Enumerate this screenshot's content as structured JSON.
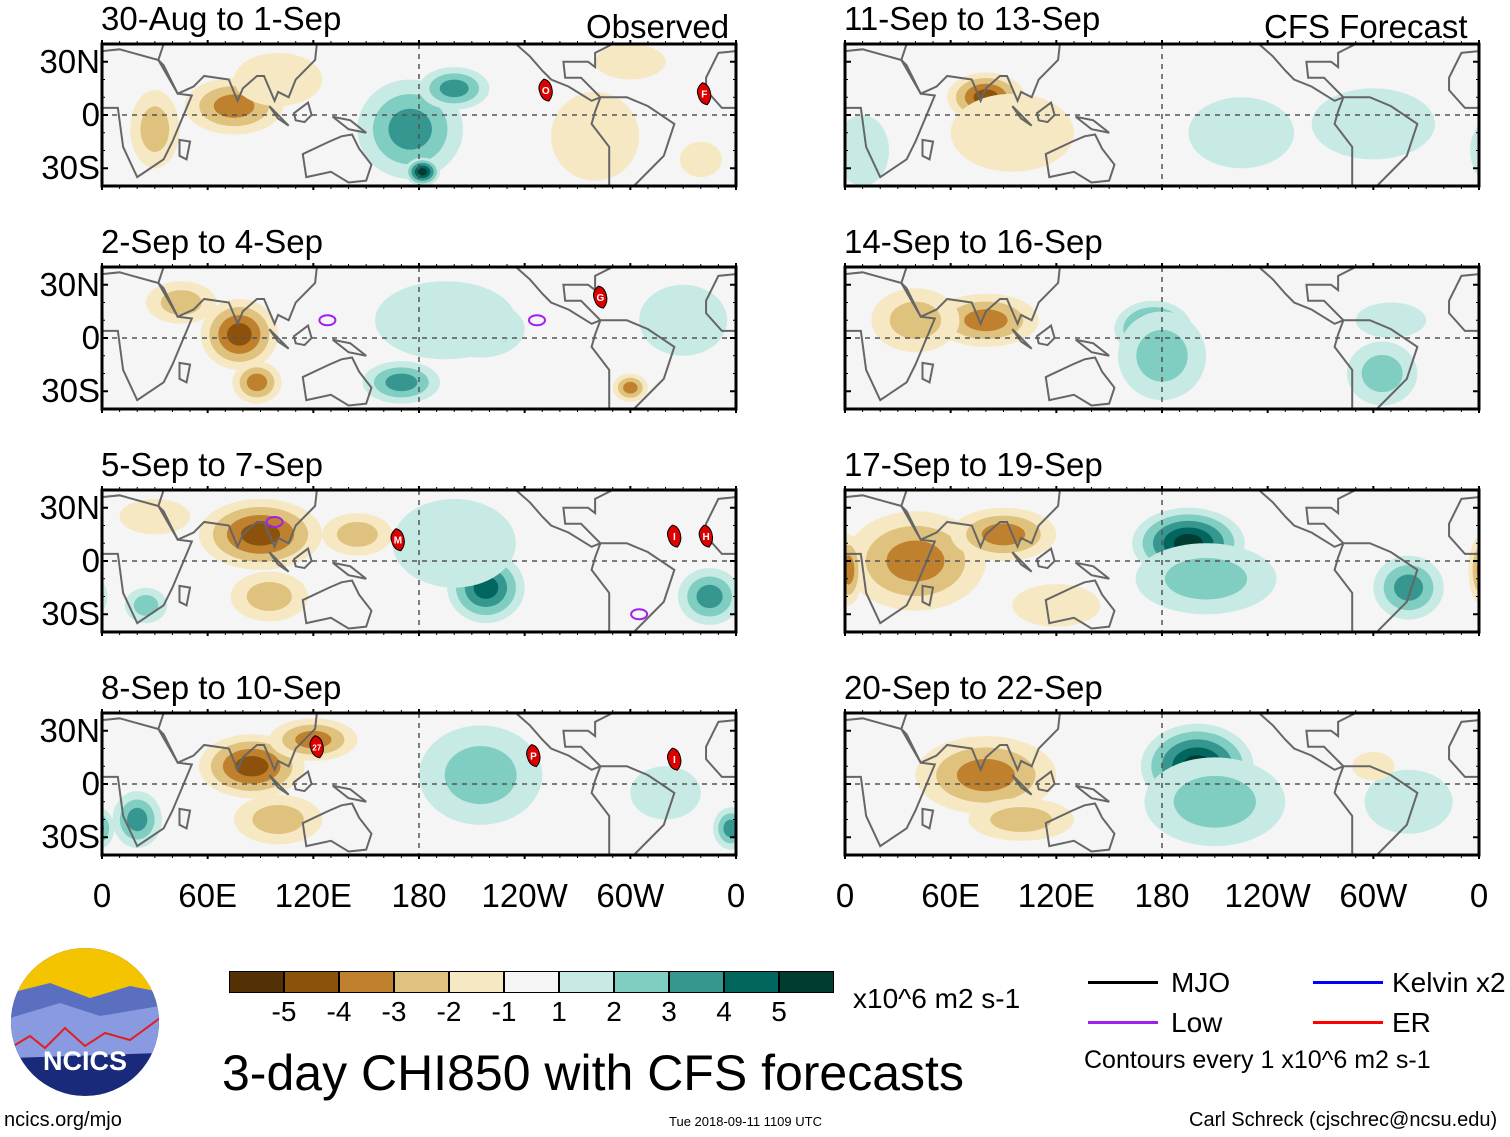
{
  "header_left": "Observed",
  "header_right": "CFS Forecast",
  "title": "3-day CHI850 with CFS forecasts",
  "units": "x10^6 m2 s-1",
  "footer": {
    "url": "ncics.org/mjo",
    "timestamp": "Tue 2018-09-11 1109 UTC",
    "author": "Carl Schreck (cjschrec@ncsu.edu)"
  },
  "logo_text": "NCICS",
  "legend": {
    "items": [
      {
        "label": "MJO",
        "color": "#000000"
      },
      {
        "label": "Kelvin x2",
        "color": "#0000ff"
      },
      {
        "label": "Low",
        "color": "#a020f0"
      },
      {
        "label": "ER",
        "color": "#ff0000"
      }
    ],
    "contours_note": "Contours every 1 x10^6 m2 s-1"
  },
  "chart_data": {
    "type": "heatmap",
    "variable": "CHI850 anomaly",
    "x_ticks": [
      "0",
      "60E",
      "120E",
      "180",
      "120W",
      "60W",
      "0"
    ],
    "y_ticks": [
      "30N",
      "0",
      "30S"
    ],
    "lon_range": [
      0,
      360
    ],
    "lat_range": [
      -40,
      40
    ],
    "colorbar": {
      "levels": [
        "-5",
        "-4",
        "-3",
        "-2",
        "-1",
        "1",
        "2",
        "3",
        "4",
        "5"
      ],
      "colors": [
        "#543005",
        "#8c510a",
        "#bf812d",
        "#dfc27d",
        "#f6e8c3",
        "#f5f5f5",
        "#c7eae5",
        "#80cdc1",
        "#35978f",
        "#01665e",
        "#003c30"
      ]
    },
    "panels": [
      {
        "title": "30-Aug to 1-Sep",
        "kind": "observed",
        "anomalies": [
          [
            75,
            5,
            28,
            16,
            -3
          ],
          [
            30,
            -8,
            14,
            22,
            -2
          ],
          [
            100,
            20,
            25,
            15,
            -1
          ],
          [
            175,
            -8,
            30,
            28,
            3
          ],
          [
            200,
            15,
            20,
            12,
            3
          ],
          [
            182,
            -32,
            10,
            8,
            5
          ],
          [
            280,
            -12,
            25,
            25,
            -1
          ],
          [
            300,
            30,
            20,
            10,
            -1
          ],
          [
            340,
            -25,
            12,
            10,
            -1
          ]
        ],
        "storms": [
          {
            "label": "O",
            "lon": 252,
            "lat": 14
          },
          {
            "label": "F",
            "lon": 342,
            "lat": 12
          }
        ],
        "lows": []
      },
      {
        "title": "2-Sep to 4-Sep",
        "kind": "observed",
        "anomalies": [
          [
            78,
            2,
            22,
            20,
            -4
          ],
          [
            88,
            -25,
            14,
            12,
            -3
          ],
          [
            45,
            20,
            20,
            12,
            -2
          ],
          [
            215,
            5,
            25,
            16,
            3
          ],
          [
            170,
            -25,
            22,
            12,
            3
          ],
          [
            195,
            10,
            40,
            22,
            1
          ],
          [
            300,
            -28,
            10,
            8,
            -3
          ],
          [
            330,
            10,
            25,
            20,
            1
          ]
        ],
        "storms": [
          {
            "label": "G",
            "lon": 283,
            "lat": 23
          }
        ],
        "lows": [
          {
            "lon": 128,
            "lat": 10
          },
          {
            "lon": 247,
            "lat": 10
          }
        ]
      },
      {
        "title": "5-Sep to 7-Sep",
        "kind": "observed",
        "anomalies": [
          [
            90,
            15,
            35,
            20,
            -4
          ],
          [
            95,
            -20,
            22,
            14,
            -2
          ],
          [
            145,
            15,
            20,
            12,
            -2
          ],
          [
            218,
            -15,
            22,
            20,
            4
          ],
          [
            200,
            10,
            35,
            25,
            1
          ],
          [
            345,
            -20,
            18,
            16,
            3
          ],
          [
            25,
            -25,
            12,
            10,
            2
          ],
          [
            30,
            25,
            20,
            10,
            -1
          ]
        ],
        "storms": [
          {
            "label": "M",
            "lon": 168,
            "lat": 12
          },
          {
            "label": "I",
            "lon": 325,
            "lat": 14
          },
          {
            "label": "H",
            "lon": 343,
            "lat": 14
          }
        ],
        "lows": [
          {
            "lon": 305,
            "lat": -30
          },
          {
            "lon": 98,
            "lat": 22
          }
        ]
      },
      {
        "title": "8-Sep to 10-Sep",
        "kind": "observed",
        "anomalies": [
          [
            85,
            10,
            30,
            18,
            -4
          ],
          [
            100,
            -20,
            25,
            14,
            -2
          ],
          [
            120,
            25,
            25,
            12,
            -3
          ],
          [
            215,
            5,
            35,
            28,
            2
          ],
          [
            20,
            -20,
            14,
            16,
            3
          ],
          [
            357,
            -25,
            10,
            12,
            3
          ],
          [
            320,
            -5,
            20,
            15,
            1
          ]
        ],
        "storms": [
          {
            "label": "27",
            "lon": 122,
            "lat": 21
          },
          {
            "label": "P",
            "lon": 245,
            "lat": 16
          },
          {
            "label": "I",
            "lon": 325,
            "lat": 14
          }
        ],
        "lows": []
      },
      {
        "title": "11-Sep to 13-Sep",
        "kind": "forecast",
        "anomalies": [
          [
            80,
            10,
            22,
            14,
            -4
          ],
          [
            95,
            -10,
            35,
            22,
            -1
          ],
          [
            300,
            -5,
            35,
            20,
            1
          ],
          [
            225,
            -10,
            30,
            20,
            1
          ],
          [
            10,
            -20,
            15,
            20,
            1
          ]
        ],
        "storms": [],
        "lows": []
      },
      {
        "title": "14-Sep to 16-Sep",
        "kind": "forecast",
        "anomalies": [
          [
            80,
            10,
            30,
            15,
            -3
          ],
          [
            40,
            10,
            25,
            18,
            -2
          ],
          [
            175,
            5,
            22,
            16,
            4
          ],
          [
            180,
            -10,
            25,
            25,
            2
          ],
          [
            305,
            -20,
            20,
            18,
            2
          ],
          [
            310,
            10,
            20,
            10,
            1
          ]
        ],
        "storms": [],
        "lows": []
      },
      {
        "title": "17-Sep to 19-Sep",
        "kind": "forecast",
        "anomalies": [
          [
            40,
            0,
            40,
            28,
            -3
          ],
          [
            90,
            15,
            30,
            15,
            -3
          ],
          [
            195,
            10,
            32,
            20,
            5
          ],
          [
            205,
            -10,
            40,
            20,
            2
          ],
          [
            320,
            -15,
            20,
            18,
            3
          ],
          [
            2,
            -5,
            8,
            20,
            -3
          ],
          [
            120,
            -25,
            25,
            12,
            -1
          ]
        ],
        "storms": [],
        "lows": []
      },
      {
        "title": "20-Sep to 22-Sep",
        "kind": "forecast",
        "anomalies": [
          [
            80,
            5,
            40,
            22,
            -3
          ],
          [
            100,
            -20,
            30,
            12,
            -2
          ],
          [
            200,
            10,
            32,
            24,
            5
          ],
          [
            210,
            -10,
            40,
            25,
            2
          ],
          [
            320,
            -10,
            25,
            18,
            1
          ],
          [
            300,
            10,
            12,
            8,
            -1
          ]
        ],
        "storms": [],
        "lows": []
      }
    ]
  }
}
